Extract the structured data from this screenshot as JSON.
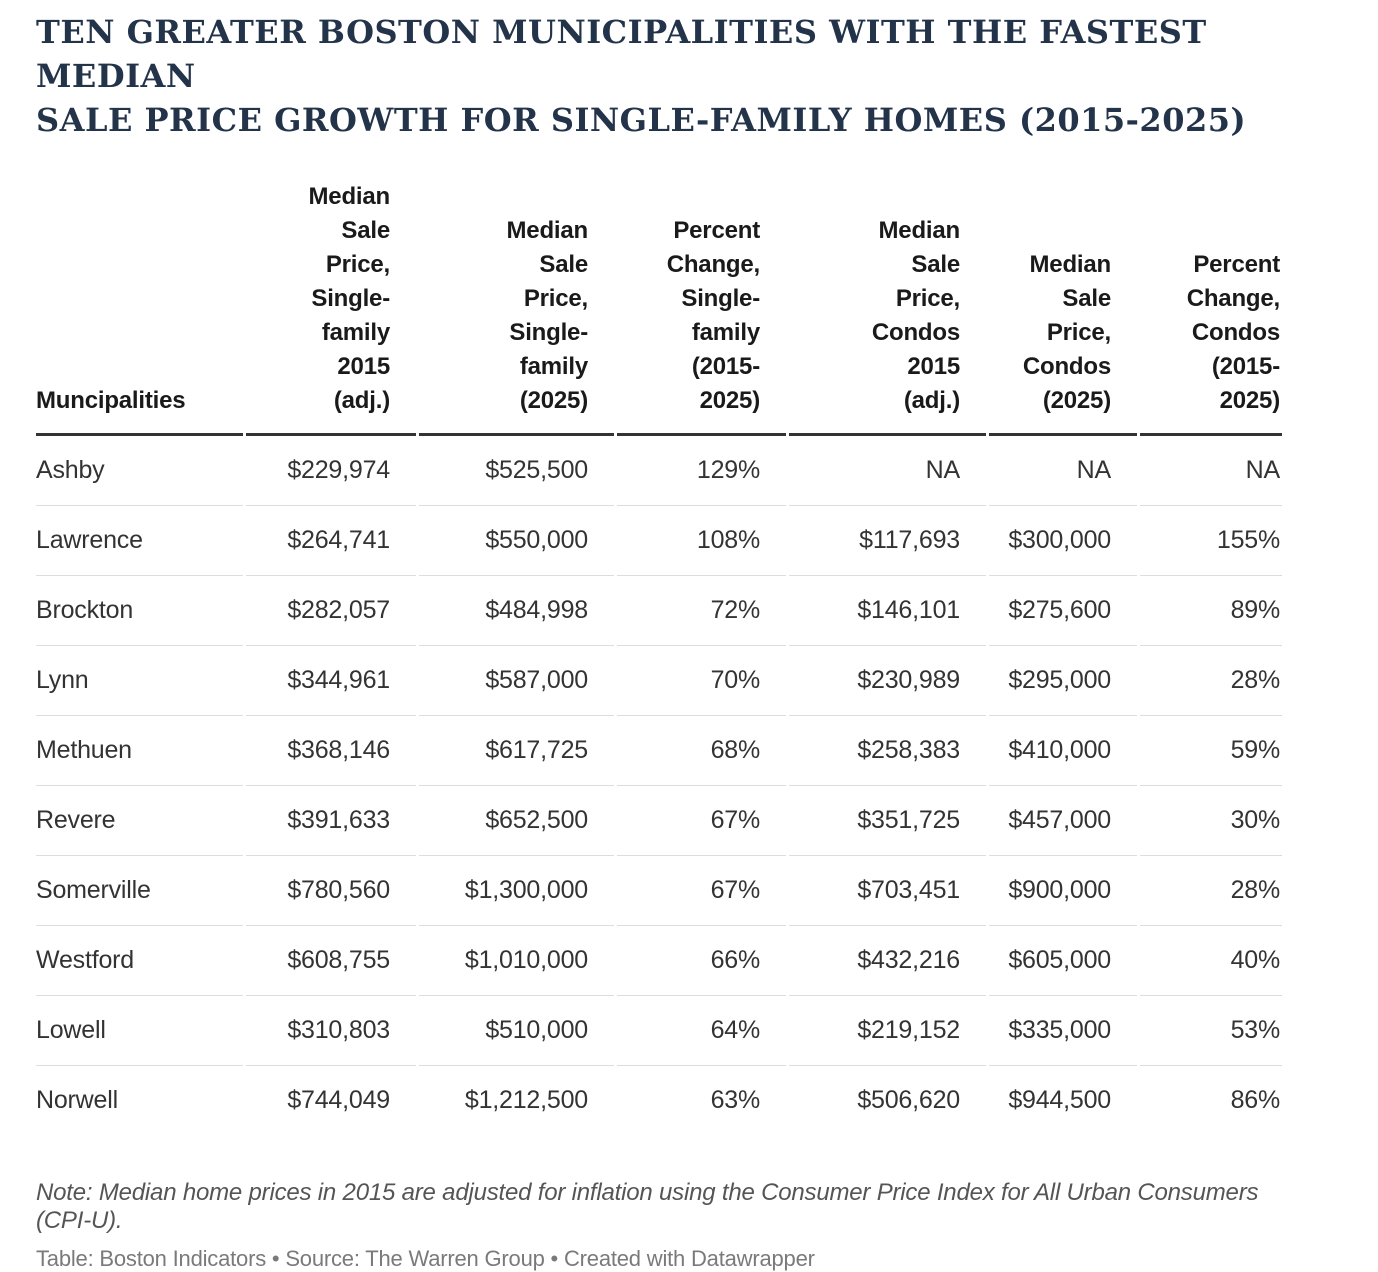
{
  "title": {
    "line1": "TEN GREATER BOSTON MUNICIPALITIES WITH THE FASTEST MEDIAN",
    "line2": "SALE PRICE GROWTH FOR SINGLE-FAMILY HOMES (2015-2025)"
  },
  "headers": [
    "Muncipalities",
    "Median\nSale\nPrice,\nSingle-\nfamily\n2015\n(adj.)",
    "Median\nSale\nPrice,\nSingle-\nfamily\n(2025)",
    "Percent\nChange,\nSingle-\nfamily\n(2015-\n2025)",
    "Median\nSale\nPrice,\nCondos\n2015\n(adj.)",
    "Median\nSale\nPrice,\nCondos\n(2025)",
    "Percent\nChange,\nCondos\n(2015-\n2025)"
  ],
  "chart_data": {
    "type": "table",
    "title": "TEN GREATER BOSTON MUNICIPALITIES WITH THE FASTEST MEDIAN SALE PRICE GROWTH FOR SINGLE-FAMILY HOMES (2015-2025)",
    "columns": [
      "Muncipalities",
      "Median Sale Price, Single-family 2015 (adj.)",
      "Median Sale Price, Single-family (2025)",
      "Percent Change, Single-family (2015-2025)",
      "Median Sale Price, Condos 2015 (adj.)",
      "Median Sale Price, Condos (2025)",
      "Percent Change, Condos (2015-2025)"
    ],
    "rows": [
      [
        "Ashby",
        "$229,974",
        "$525,500",
        "129%",
        "NA",
        "NA",
        "NA"
      ],
      [
        "Lawrence",
        "$264,741",
        "$550,000",
        "108%",
        "$117,693",
        "$300,000",
        "155%"
      ],
      [
        "Brockton",
        "$282,057",
        "$484,998",
        "72%",
        "$146,101",
        "$275,600",
        "89%"
      ],
      [
        "Lynn",
        "$344,961",
        "$587,000",
        "70%",
        "$230,989",
        "$295,000",
        "28%"
      ],
      [
        "Methuen",
        "$368,146",
        "$617,725",
        "68%",
        "$258,383",
        "$410,000",
        "59%"
      ],
      [
        "Revere",
        "$391,633",
        "$652,500",
        "67%",
        "$351,725",
        "$457,000",
        "30%"
      ],
      [
        "Somerville",
        "$780,560",
        "$1,300,000",
        "67%",
        "$703,451",
        "$900,000",
        "28%"
      ],
      [
        "Westford",
        "$608,755",
        "$1,010,000",
        "66%",
        "$432,216",
        "$605,000",
        "40%"
      ],
      [
        "Lowell",
        "$310,803",
        "$510,000",
        "64%",
        "$219,152",
        "$335,000",
        "53%"
      ],
      [
        "Norwell",
        "$744,049",
        "$1,212,500",
        "63%",
        "$506,620",
        "$944,500",
        "86%"
      ]
    ]
  },
  "note": "Note: Median home prices in 2015 are adjusted for inflation using the Consumer Price Index for All Urban Consumers (CPI-U).",
  "credits": "Table: Boston Indicators • Source: The Warren Group • Created with Datawrapper",
  "colors": {
    "title": "#22334a",
    "header_rule": "#333333",
    "row_rule": "#dddddd",
    "body_text": "#333333",
    "note_text": "#555555",
    "credits_text": "#7a7a7a"
  }
}
